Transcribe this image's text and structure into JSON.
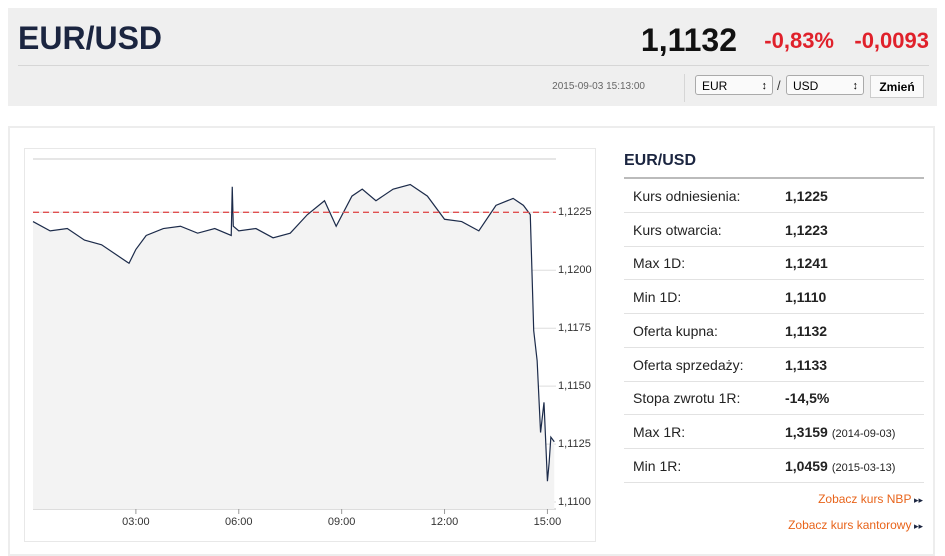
{
  "header": {
    "title": "EUR/USD",
    "price": "1,1132",
    "change_pct": "-0,83%",
    "change_abs": "-0,0093",
    "timestamp": "2015-09-03 15:13:00",
    "from_currency": "EUR",
    "separator": "/",
    "to_currency": "USD",
    "button": "Zmień"
  },
  "chart_data": {
    "type": "line",
    "x": [
      0.0,
      0.5,
      1.0,
      1.5,
      2.0,
      2.5,
      2.8,
      3.0,
      3.3,
      3.8,
      4.3,
      4.8,
      5.3,
      5.78,
      5.81,
      5.84,
      6.0,
      6.5,
      7.0,
      7.5,
      8.0,
      8.5,
      8.84,
      9.3,
      9.6,
      10.0,
      10.5,
      11.0,
      11.5,
      12.0,
      12.5,
      13.0,
      13.5,
      14.0,
      14.3,
      14.5,
      14.6,
      14.7,
      14.8,
      14.9,
      15.0,
      15.05,
      15.1,
      15.2
    ],
    "series": [
      {
        "name": "EUR/USD",
        "color": "#1c2b4a",
        "values": [
          1.1221,
          1.1217,
          1.1218,
          1.1213,
          1.1211,
          1.1206,
          1.1203,
          1.1209,
          1.1215,
          1.1218,
          1.1219,
          1.1216,
          1.1218,
          1.1215,
          1.1236,
          1.1219,
          1.1217,
          1.1218,
          1.1214,
          1.1216,
          1.1224,
          1.123,
          1.1219,
          1.1232,
          1.1235,
          1.123,
          1.1235,
          1.1237,
          1.1232,
          1.1222,
          1.1221,
          1.1217,
          1.1228,
          1.1231,
          1.1228,
          1.1224,
          1.1174,
          1.1161,
          1.113,
          1.1143,
          1.1109,
          1.1117,
          1.1128,
          1.1126
        ]
      }
    ],
    "reference_line": {
      "value": 1.1225,
      "color": "#e05050"
    },
    "xlim": [
      0,
      15.25
    ],
    "xticks": [
      {
        "value": 3,
        "label": "03:00"
      },
      {
        "value": 6,
        "label": "06:00"
      },
      {
        "value": 9,
        "label": "09:00"
      },
      {
        "value": 12,
        "label": "12:00"
      },
      {
        "value": 15,
        "label": "15:00"
      }
    ],
    "ylim": [
      1.1097,
      1.1248
    ],
    "yticks": [
      {
        "value": 1.11,
        "label": "1,1100"
      },
      {
        "value": 1.1125,
        "label": "1,1125"
      },
      {
        "value": 1.115,
        "label": "1,1150"
      },
      {
        "value": 1.1175,
        "label": "1,1175"
      },
      {
        "value": 1.12,
        "label": "1,1200"
      },
      {
        "value": 1.1225,
        "label": "1,1225"
      }
    ],
    "grid": true
  },
  "table": {
    "title": "EUR/USD",
    "rows": [
      [
        "Kurs odniesienia:",
        "1,1225"
      ],
      [
        "Kurs otwarcia:",
        "1,1223"
      ],
      [
        "Max 1D:",
        "1,1241"
      ],
      [
        "Min 1D:",
        "1,1110"
      ],
      [
        "Oferta kupna:",
        "1,1132"
      ],
      [
        "Oferta sprzedaży:",
        "1,1133"
      ],
      [
        "Stopa zwrotu 1R:",
        "-14,5%"
      ],
      [
        "Max 1R:",
        "1,3159",
        "(2014-09-03)"
      ],
      [
        "Min 1R:",
        "1,0459",
        "(2015-03-13)"
      ]
    ]
  },
  "links": [
    "Zobacz kurs NBP",
    "Zobacz kurs kantorowy"
  ]
}
